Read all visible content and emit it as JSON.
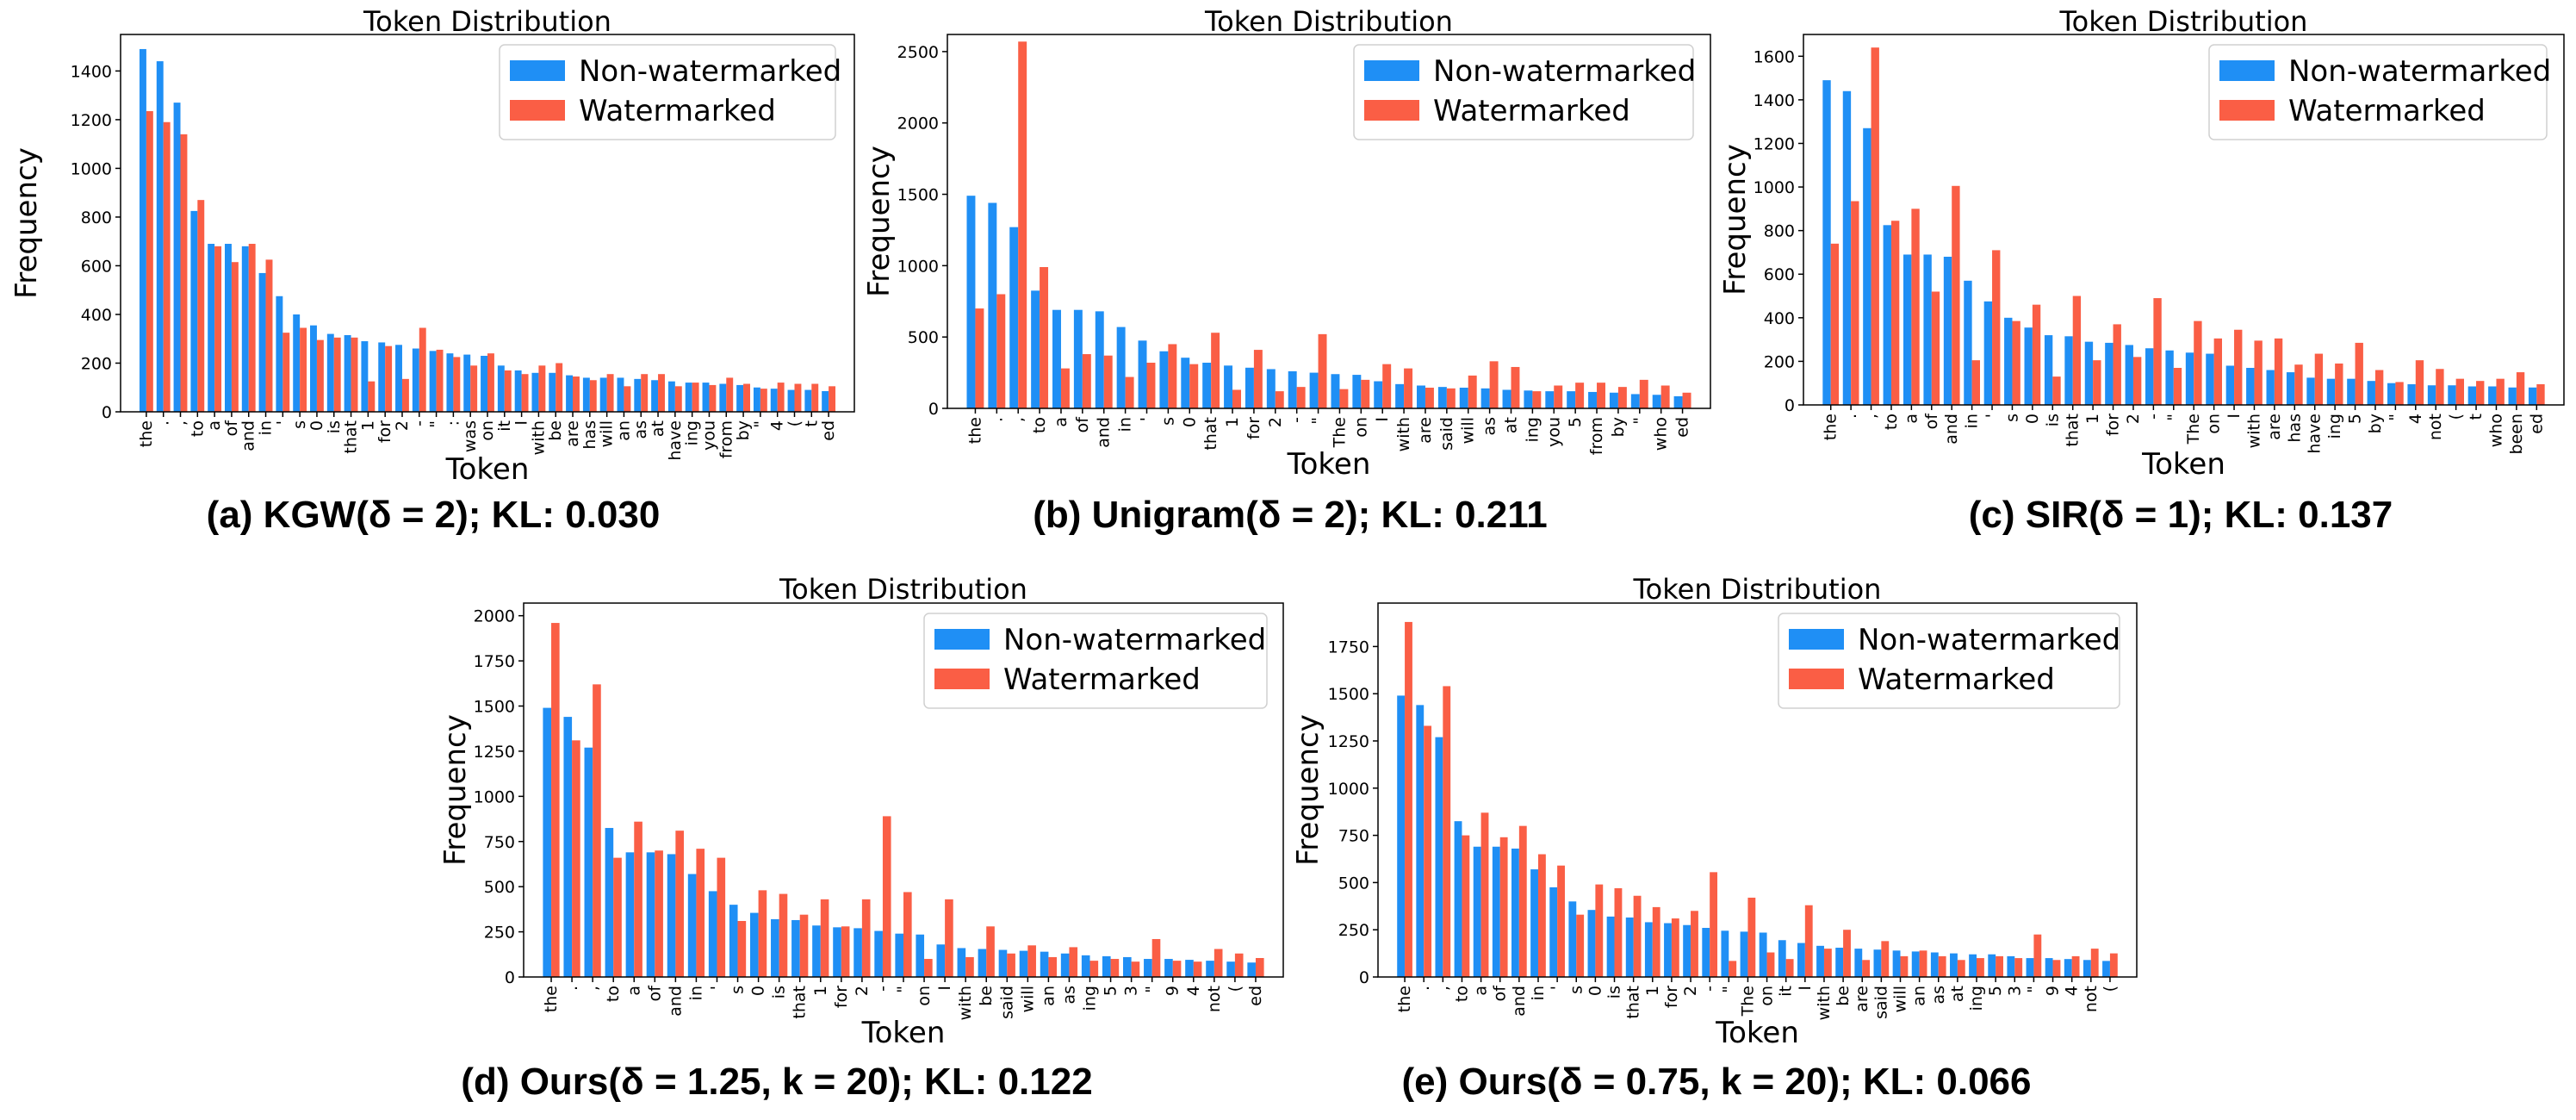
{
  "figure": {
    "colors": {
      "non_watermarked": "#1f8ff5",
      "watermarked": "#fa5e45"
    },
    "legend": [
      "Non-watermarked",
      "Watermarked"
    ]
  },
  "chart_data": [
    {
      "type": "bar",
      "title": "Token Distribution",
      "xlabel": "Token",
      "ylabel": "Frequency",
      "caption": "(a) KGW(δ = 2); KL: 0.030",
      "ylim": [
        0,
        1550
      ],
      "yticks": [
        0,
        200,
        400,
        600,
        800,
        1000,
        1200,
        1400
      ],
      "categories": [
        "the",
        ".",
        ",",
        "to",
        "a",
        "of",
        "and",
        "in",
        "'",
        "s",
        "0",
        "is",
        "that",
        "1",
        "for",
        "2",
        "-",
        "\"",
        ":",
        "was",
        "on",
        "it",
        "I",
        "with",
        "be",
        "are",
        "has",
        "will",
        "an",
        "as",
        "at",
        "have",
        "ing",
        "you",
        "from",
        "by",
        "\"",
        "4",
        "(",
        "t",
        "ed"
      ],
      "series": [
        {
          "name": "Non-watermarked",
          "values": [
            1490,
            1440,
            1270,
            825,
            690,
            690,
            680,
            570,
            475,
            400,
            355,
            320,
            315,
            290,
            285,
            275,
            260,
            250,
            240,
            235,
            230,
            190,
            170,
            160,
            160,
            150,
            140,
            140,
            140,
            135,
            130,
            125,
            120,
            120,
            115,
            110,
            100,
            95,
            90,
            90,
            85
          ]
        },
        {
          "name": "Watermarked",
          "values": [
            1235,
            1190,
            1140,
            870,
            680,
            615,
            690,
            625,
            325,
            345,
            295,
            305,
            305,
            125,
            270,
            135,
            345,
            255,
            225,
            190,
            240,
            170,
            155,
            190,
            200,
            145,
            130,
            155,
            105,
            155,
            155,
            105,
            120,
            110,
            140,
            115,
            95,
            120,
            115,
            115,
            105
          ]
        }
      ]
    },
    {
      "type": "bar",
      "title": "Token Distribution",
      "xlabel": "Token",
      "ylabel": "Frequency",
      "caption": "(b) Unigram(δ = 2); KL: 0.211",
      "ylim": [
        0,
        2620
      ],
      "yticks": [
        0,
        500,
        1000,
        1500,
        2000,
        2500
      ],
      "categories": [
        "the",
        ".",
        ",",
        "to",
        "a",
        "of",
        "and",
        "in",
        "'",
        "s",
        "0",
        "that",
        "1",
        "for",
        "2",
        "-",
        "\"",
        "The",
        "on",
        "I",
        "with",
        "are",
        "said",
        "will",
        "as",
        "at",
        "ing",
        "you",
        "5",
        "from",
        "by",
        "\"",
        "who",
        "ed"
      ],
      "series": [
        {
          "name": "Non-watermarked",
          "values": [
            1490,
            1440,
            1270,
            825,
            690,
            690,
            680,
            570,
            475,
            400,
            355,
            320,
            300,
            285,
            275,
            260,
            250,
            240,
            235,
            190,
            170,
            160,
            150,
            145,
            140,
            130,
            125,
            120,
            120,
            115,
            110,
            100,
            95,
            85
          ]
        },
        {
          "name": "Watermarked",
          "values": [
            700,
            800,
            2570,
            990,
            280,
            380,
            370,
            220,
            320,
            450,
            310,
            530,
            130,
            410,
            120,
            150,
            520,
            135,
            200,
            310,
            280,
            145,
            140,
            230,
            330,
            290,
            120,
            160,
            180,
            180,
            150,
            200,
            160,
            110
          ]
        }
      ]
    },
    {
      "type": "bar",
      "title": "Token Distribution",
      "xlabel": "Token",
      "ylabel": "Frequency",
      "caption": "(c) SIR(δ = 1); KL: 0.137",
      "ylim": [
        0,
        1700
      ],
      "yticks": [
        0,
        200,
        400,
        600,
        800,
        1000,
        1200,
        1400,
        1600
      ],
      "categories": [
        "the",
        ".",
        ",",
        "to",
        "a",
        "of",
        "and",
        "in",
        "'",
        "s",
        "0",
        "is",
        "that",
        "1",
        "for",
        "2",
        "-",
        "\"",
        "The",
        "on",
        "I",
        "with",
        "are",
        "has",
        "have",
        "ing",
        "5",
        "by",
        "\"",
        "4",
        "not",
        "(",
        "t",
        "who",
        "been",
        "ed"
      ],
      "series": [
        {
          "name": "Non-watermarked",
          "values": [
            1490,
            1440,
            1270,
            825,
            690,
            690,
            680,
            570,
            475,
            400,
            355,
            320,
            315,
            290,
            285,
            275,
            260,
            250,
            240,
            235,
            180,
            170,
            160,
            150,
            125,
            120,
            120,
            110,
            100,
            95,
            90,
            90,
            85,
            85,
            80,
            80
          ]
        },
        {
          "name": "Watermarked",
          "values": [
            740,
            935,
            1640,
            845,
            900,
            520,
            1005,
            205,
            710,
            385,
            460,
            130,
            500,
            205,
            370,
            220,
            490,
            170,
            385,
            305,
            345,
            295,
            305,
            185,
            235,
            190,
            285,
            160,
            105,
            205,
            165,
            120,
            110,
            120,
            150,
            95
          ]
        }
      ]
    },
    {
      "type": "bar",
      "title": "Token Distribution",
      "xlabel": "Token",
      "ylabel": "Frequency",
      "caption": "(d) Ours(δ = 1.25, k = 20); KL: 0.122",
      "ylim": [
        0,
        2070
      ],
      "yticks": [
        0,
        250,
        500,
        750,
        1000,
        1250,
        1500,
        1750,
        2000
      ],
      "categories": [
        "the",
        ".",
        ",",
        "to",
        "a",
        "of",
        "and",
        "in",
        "'",
        "s",
        "0",
        "is",
        "that",
        "1",
        "for",
        "2",
        "-",
        "\"",
        "on",
        "I",
        "with",
        "be",
        "said",
        "will",
        "an",
        "as",
        "ing",
        "5",
        "3",
        "\"",
        "9",
        "4",
        "not",
        "(",
        "ed"
      ],
      "series": [
        {
          "name": "Non-watermarked",
          "values": [
            1490,
            1440,
            1270,
            825,
            690,
            690,
            680,
            570,
            475,
            400,
            355,
            320,
            315,
            285,
            275,
            270,
            255,
            240,
            235,
            180,
            160,
            155,
            150,
            145,
            140,
            130,
            120,
            115,
            110,
            100,
            100,
            95,
            90,
            85,
            80
          ]
        },
        {
          "name": "Watermarked",
          "values": [
            1960,
            1310,
            1620,
            660,
            860,
            700,
            810,
            710,
            660,
            310,
            480,
            460,
            345,
            430,
            280,
            430,
            890,
            470,
            100,
            430,
            110,
            280,
            130,
            175,
            110,
            165,
            90,
            100,
            85,
            210,
            90,
            85,
            155,
            130,
            105
          ]
        }
      ]
    },
    {
      "type": "bar",
      "title": "Token Distribution",
      "xlabel": "Token",
      "ylabel": "Frequency",
      "caption": "(e) Ours(δ = 0.75, k = 20); KL: 0.066",
      "ylim": [
        0,
        1980
      ],
      "yticks": [
        0,
        250,
        500,
        750,
        1000,
        1250,
        1500,
        1750
      ],
      "categories": [
        "the",
        ".",
        ",",
        "to",
        "a",
        "of",
        "and",
        "in",
        "'",
        "s",
        "0",
        "is",
        "that",
        "1",
        "for",
        "2",
        "-",
        "\"",
        "The",
        "on",
        "it",
        "I",
        "with",
        "be",
        "are",
        "said",
        "will",
        "an",
        "as",
        "at",
        "ing",
        "5",
        "3",
        "\"",
        "9",
        "4",
        "not",
        "("
      ],
      "series": [
        {
          "name": "Non-watermarked",
          "values": [
            1490,
            1440,
            1270,
            825,
            690,
            690,
            680,
            570,
            475,
            400,
            355,
            320,
            315,
            290,
            285,
            275,
            260,
            245,
            240,
            235,
            195,
            180,
            165,
            155,
            150,
            145,
            140,
            135,
            130,
            125,
            120,
            120,
            110,
            100,
            100,
            95,
            90,
            85
          ]
        },
        {
          "name": "Watermarked",
          "values": [
            1880,
            1330,
            1540,
            750,
            870,
            740,
            800,
            650,
            590,
            330,
            490,
            470,
            430,
            370,
            310,
            350,
            555,
            85,
            420,
            130,
            95,
            380,
            150,
            250,
            90,
            190,
            110,
            140,
            110,
            90,
            100,
            110,
            100,
            225,
            90,
            110,
            150,
            125
          ]
        }
      ]
    }
  ]
}
